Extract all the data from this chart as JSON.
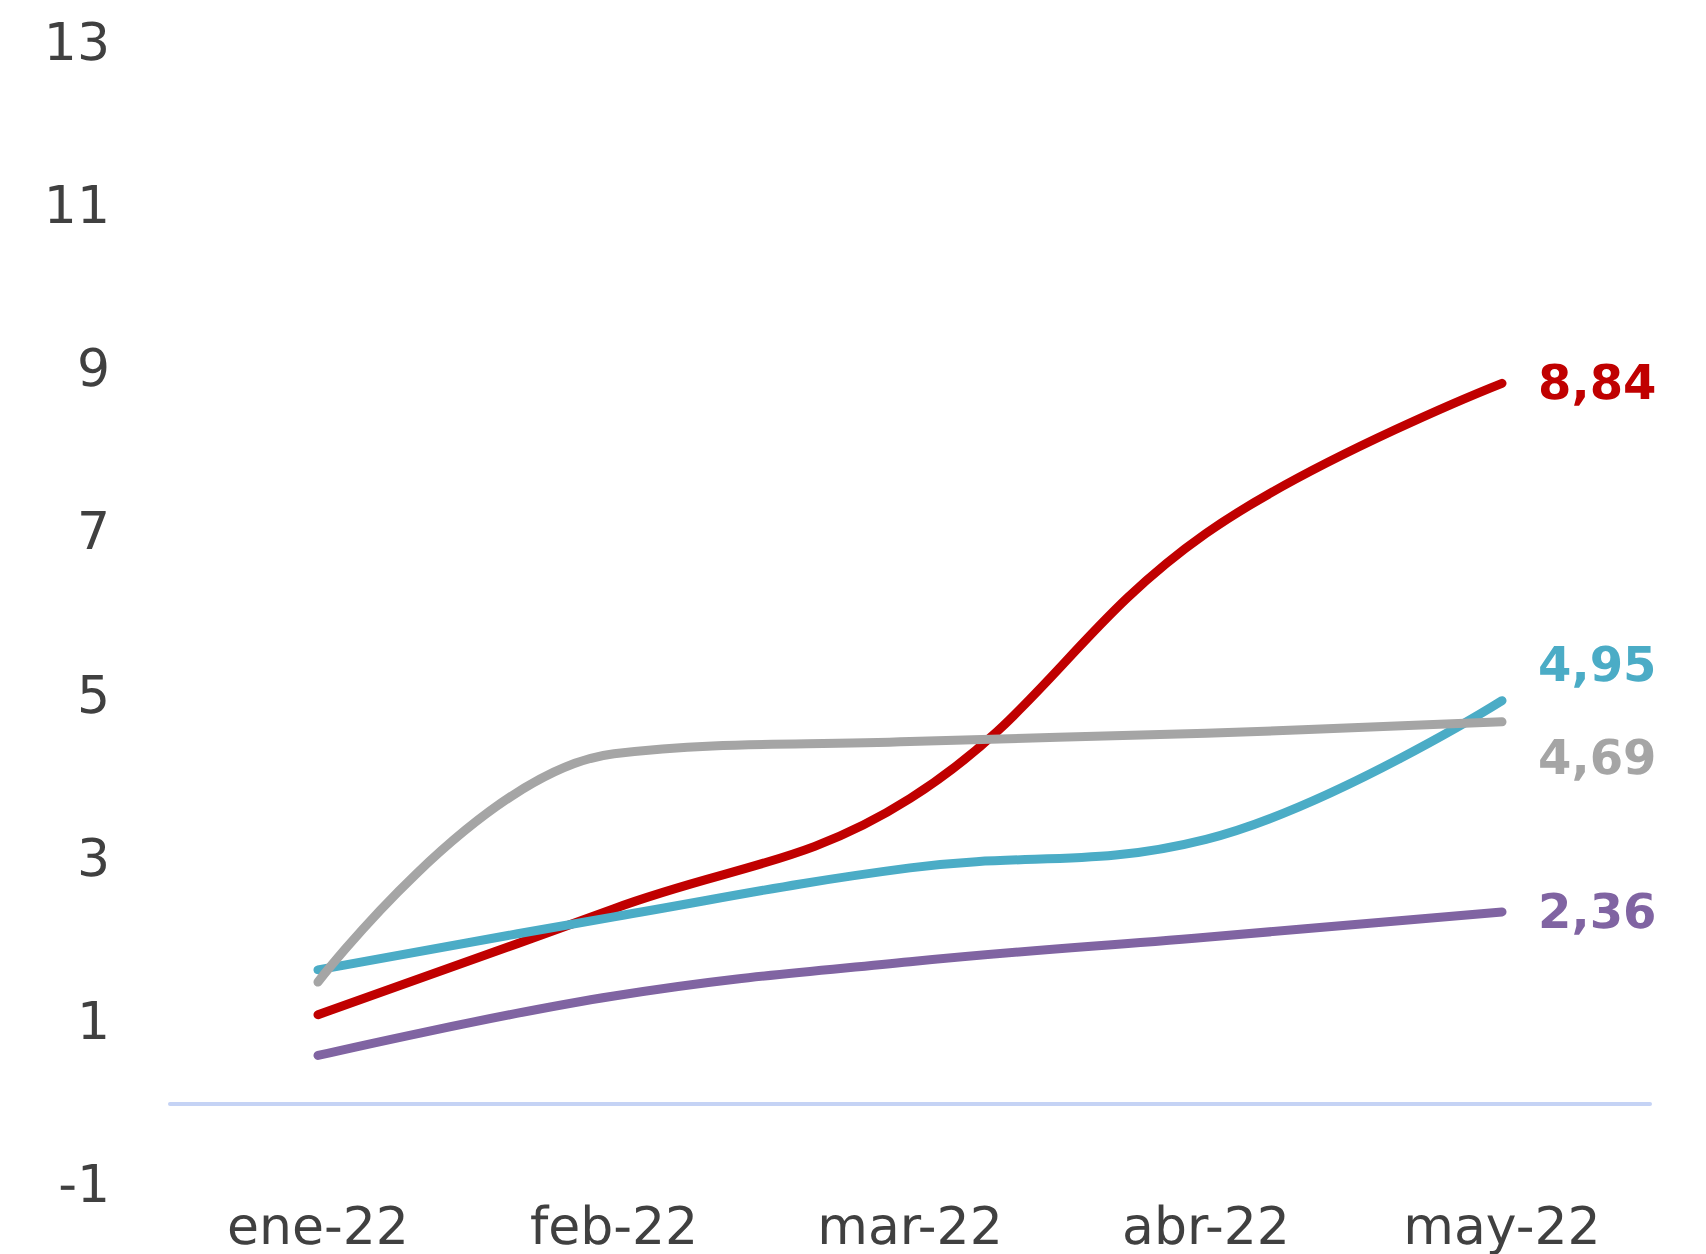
{
  "chart_data": {
    "type": "line",
    "categories": [
      "ene-22",
      "feb-22",
      "mar-22",
      "abr-22",
      "may-22"
    ],
    "series": [
      {
        "color": "#c00000",
        "values": [
          1.1,
          2.4,
          3.75,
          7.0,
          8.84
        ],
        "value_labels": [
          null,
          null,
          null,
          null,
          "8,84"
        ]
      },
      {
        "color": "#4bacc6",
        "values": [
          1.65,
          2.3,
          2.9,
          3.25,
          4.95
        ],
        "value_labels": [
          null,
          null,
          null,
          null,
          "4,95"
        ]
      },
      {
        "color": "#a5a5a5",
        "values": [
          1.5,
          4.3,
          4.45,
          4.55,
          4.69
        ],
        "value_labels": [
          null,
          null,
          null,
          null,
          "4,69"
        ]
      },
      {
        "color": "#8064a2",
        "values": [
          0.6,
          1.33,
          1.75,
          2.05,
          2.36
        ],
        "value_labels": [
          null,
          null,
          null,
          null,
          "2,36"
        ]
      }
    ],
    "ylim": [
      -1,
      13
    ],
    "yticks": [
      -1,
      1,
      3,
      5,
      7,
      9,
      11,
      13
    ],
    "grid": false,
    "marker": "none",
    "line_style": "solid"
  }
}
